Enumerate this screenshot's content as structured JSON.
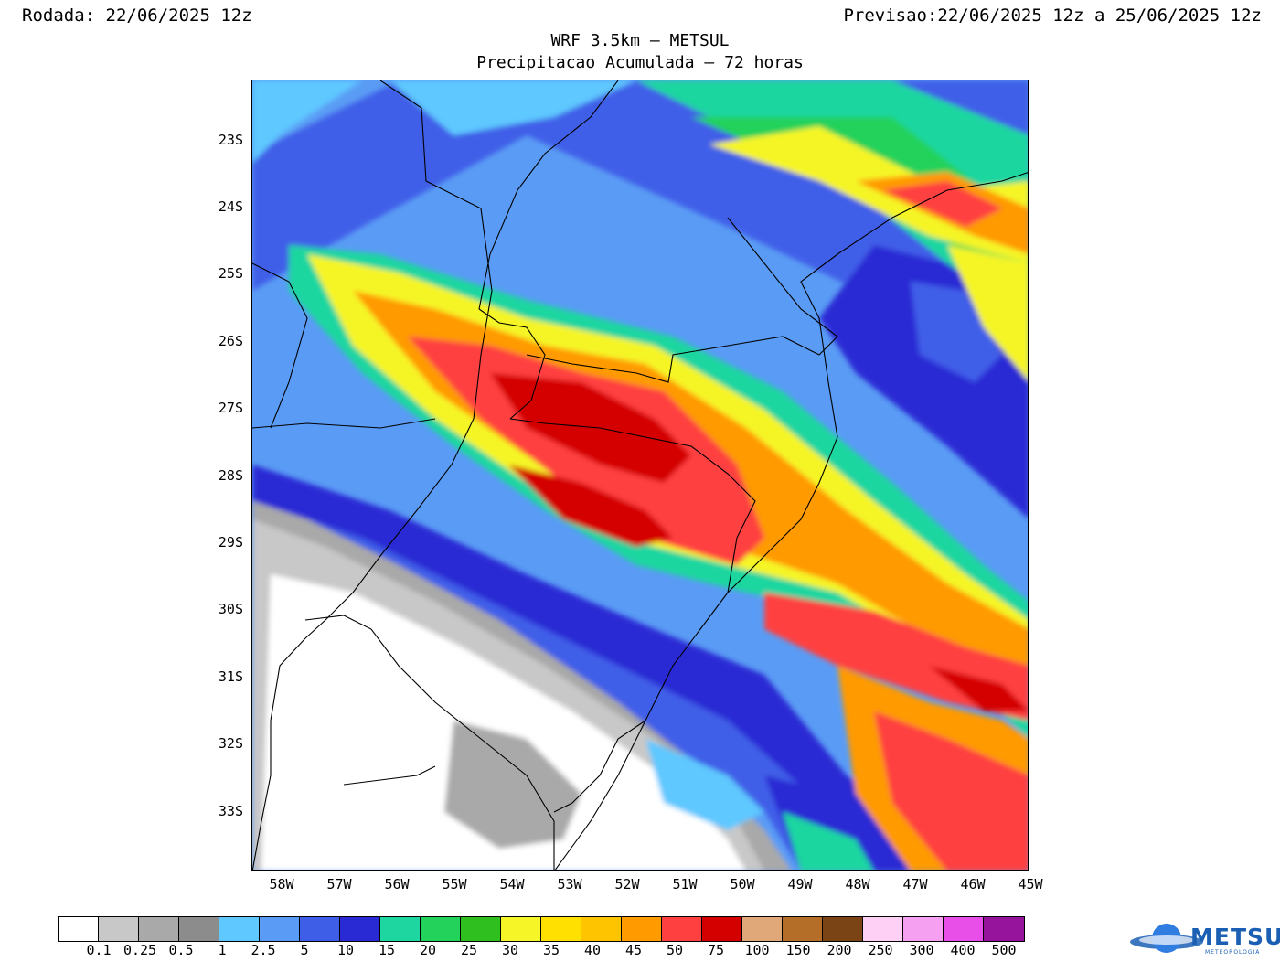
{
  "header": {
    "rodada_label": "Rodada:",
    "rodada_value": "22/06/2025 12z",
    "previsao_label": "Previsao:",
    "previsao_value": "22/06/2025 12z a 25/06/2025 12z"
  },
  "title": {
    "line1": "WRF 3.5km — METSUL",
    "line2": "Precipitacao Acumulada — 72 horas"
  },
  "map": {
    "lat_labels": [
      "23S",
      "24S",
      "25S",
      "26S",
      "27S",
      "28S",
      "29S",
      "30S",
      "31S",
      "32S",
      "33S"
    ],
    "lon_labels": [
      "58W",
      "57W",
      "56W",
      "55W",
      "54W",
      "53W",
      "52W",
      "51W",
      "50W",
      "49W",
      "48W",
      "47W",
      "46W",
      "45W"
    ],
    "extent": {
      "lon_min": -58.5,
      "lon_max": -45.0,
      "lat_min": -34.0,
      "lat_max": -22.1
    }
  },
  "legend": {
    "colors": [
      "#ffffff",
      "#c8c8c8",
      "#a9a9a9",
      "#8c8c8c",
      "#5ec8ff",
      "#5a9cf5",
      "#3f5ee8",
      "#2a2ad4",
      "#1ed6a0",
      "#22d25a",
      "#2fbf1e",
      "#f5f528",
      "#ffe000",
      "#ffc400",
      "#ff9a00",
      "#ff4040",
      "#d40000",
      "#e0a878",
      "#b46e28",
      "#7a4414",
      "#ffd0f5",
      "#f5a0f0",
      "#e84ee8",
      "#96149b"
    ],
    "labels": [
      "0.1",
      "0.25",
      "0.5",
      "1",
      "2.5",
      "5",
      "10",
      "15",
      "20",
      "25",
      "30",
      "35",
      "40",
      "45",
      "50",
      "75",
      "100",
      "150",
      "200",
      "250",
      "300",
      "400",
      "500"
    ]
  },
  "logo": {
    "text": "METSUL",
    "subtext": "METEOROLOGIA"
  }
}
